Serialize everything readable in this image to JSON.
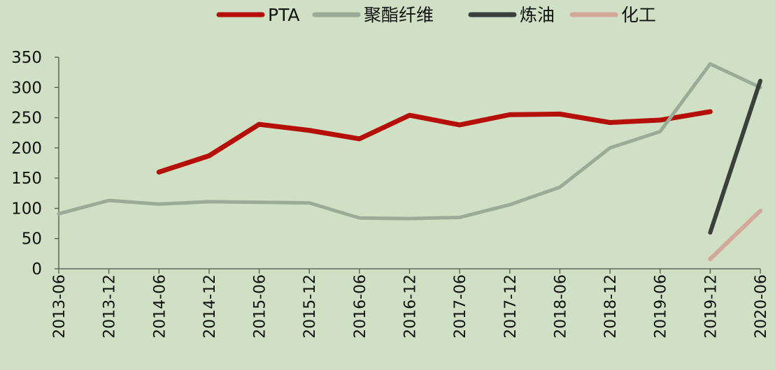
{
  "chart_data": {
    "type": "line",
    "title": "",
    "xlabel": "",
    "ylabel": "",
    "categories": [
      "2013-06",
      "2013-12",
      "2014-06",
      "2014-12",
      "2015-06",
      "2015-12",
      "2016-06",
      "2016-12",
      "2017-06",
      "2017-12",
      "2018-06",
      "2018-12",
      "2019-06",
      "2019-12",
      "2020-06"
    ],
    "ylim": [
      0,
      350
    ],
    "yticks": [
      0,
      50,
      100,
      150,
      200,
      250,
      300,
      350
    ],
    "grid": false,
    "legend_position": "top",
    "series": [
      {
        "name": "PTA",
        "color": "#b50f0a",
        "values": [
          null,
          null,
          160,
          187,
          239,
          229,
          215,
          254,
          238,
          255,
          256,
          242,
          246,
          260,
          null
        ]
      },
      {
        "name": "聚酯纤维",
        "color": "#9aab98",
        "values": [
          91,
          113,
          107,
          111,
          110,
          109,
          84,
          83,
          85,
          106,
          135,
          200,
          227,
          339,
          300
        ]
      },
      {
        "name": "炼油",
        "color": "#3c403c",
        "values": [
          null,
          null,
          null,
          null,
          null,
          null,
          null,
          null,
          null,
          null,
          null,
          null,
          null,
          60,
          311
        ]
      },
      {
        "name": "化工",
        "color": "#d3a898",
        "values": [
          null,
          null,
          null,
          null,
          null,
          null,
          null,
          null,
          null,
          null,
          null,
          null,
          null,
          16,
          96
        ]
      }
    ]
  }
}
